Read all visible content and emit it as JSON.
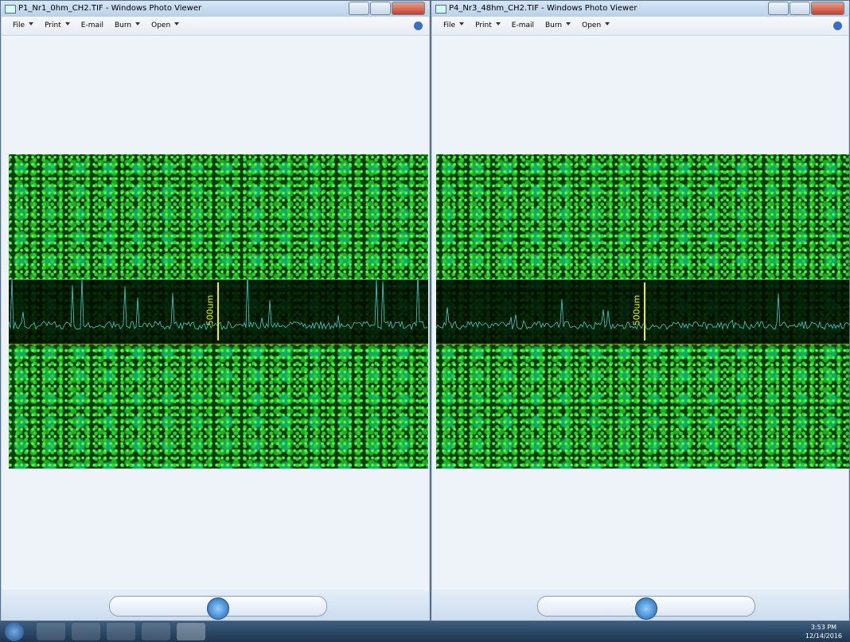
{
  "windows": [
    {
      "title": "P1_Nr1_0hm_CH2.TIF - Windows Photo Viewer",
      "menu": [
        "File",
        "Print",
        "E-mail",
        "Burn",
        "Open"
      ],
      "scale_label": "500um"
    },
    {
      "title": "P4_Nr3_48hm_CH2.TIF - Windows Photo Viewer",
      "menu": [
        "File",
        "Print",
        "E-mail",
        "Burn",
        "Open"
      ],
      "scale_label": "500um"
    }
  ],
  "taskbar": {
    "time": "3:53 PM",
    "date": "12/14/2016"
  }
}
